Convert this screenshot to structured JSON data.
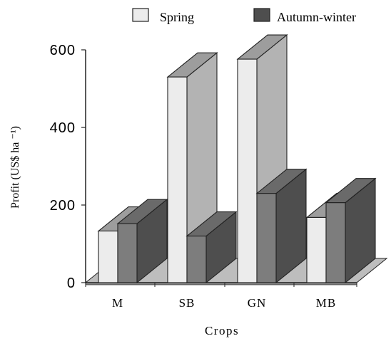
{
  "chart_data": {
    "type": "bar",
    "style": "3d-grouped",
    "categories": [
      "M",
      "SB",
      "GN",
      "MB"
    ],
    "series": [
      {
        "name": "Spring",
        "values": [
          133,
          530,
          576,
          168
        ]
      },
      {
        "name": "Autumn-winter",
        "values": [
          152,
          120,
          230,
          206
        ]
      }
    ],
    "xlabel": "Crops",
    "ylabel": "Profit (US$ ha ⁻¹)",
    "ylim": [
      0,
      600
    ],
    "yticks": [
      "0",
      "200",
      "400",
      "600"
    ],
    "grid": false,
    "legend_position": "top"
  },
  "colors": {
    "spring_front": "#ececec",
    "spring_side": "#b3b3b3",
    "spring_top": "#9d9d9d",
    "autumn_front": "#7d7d7d",
    "autumn_side": "#4e4e4e",
    "autumn_top": "#6a6a6a",
    "floor": "#bdbdbd",
    "floor_front": "#8d8d8d",
    "outline": "#222222"
  }
}
